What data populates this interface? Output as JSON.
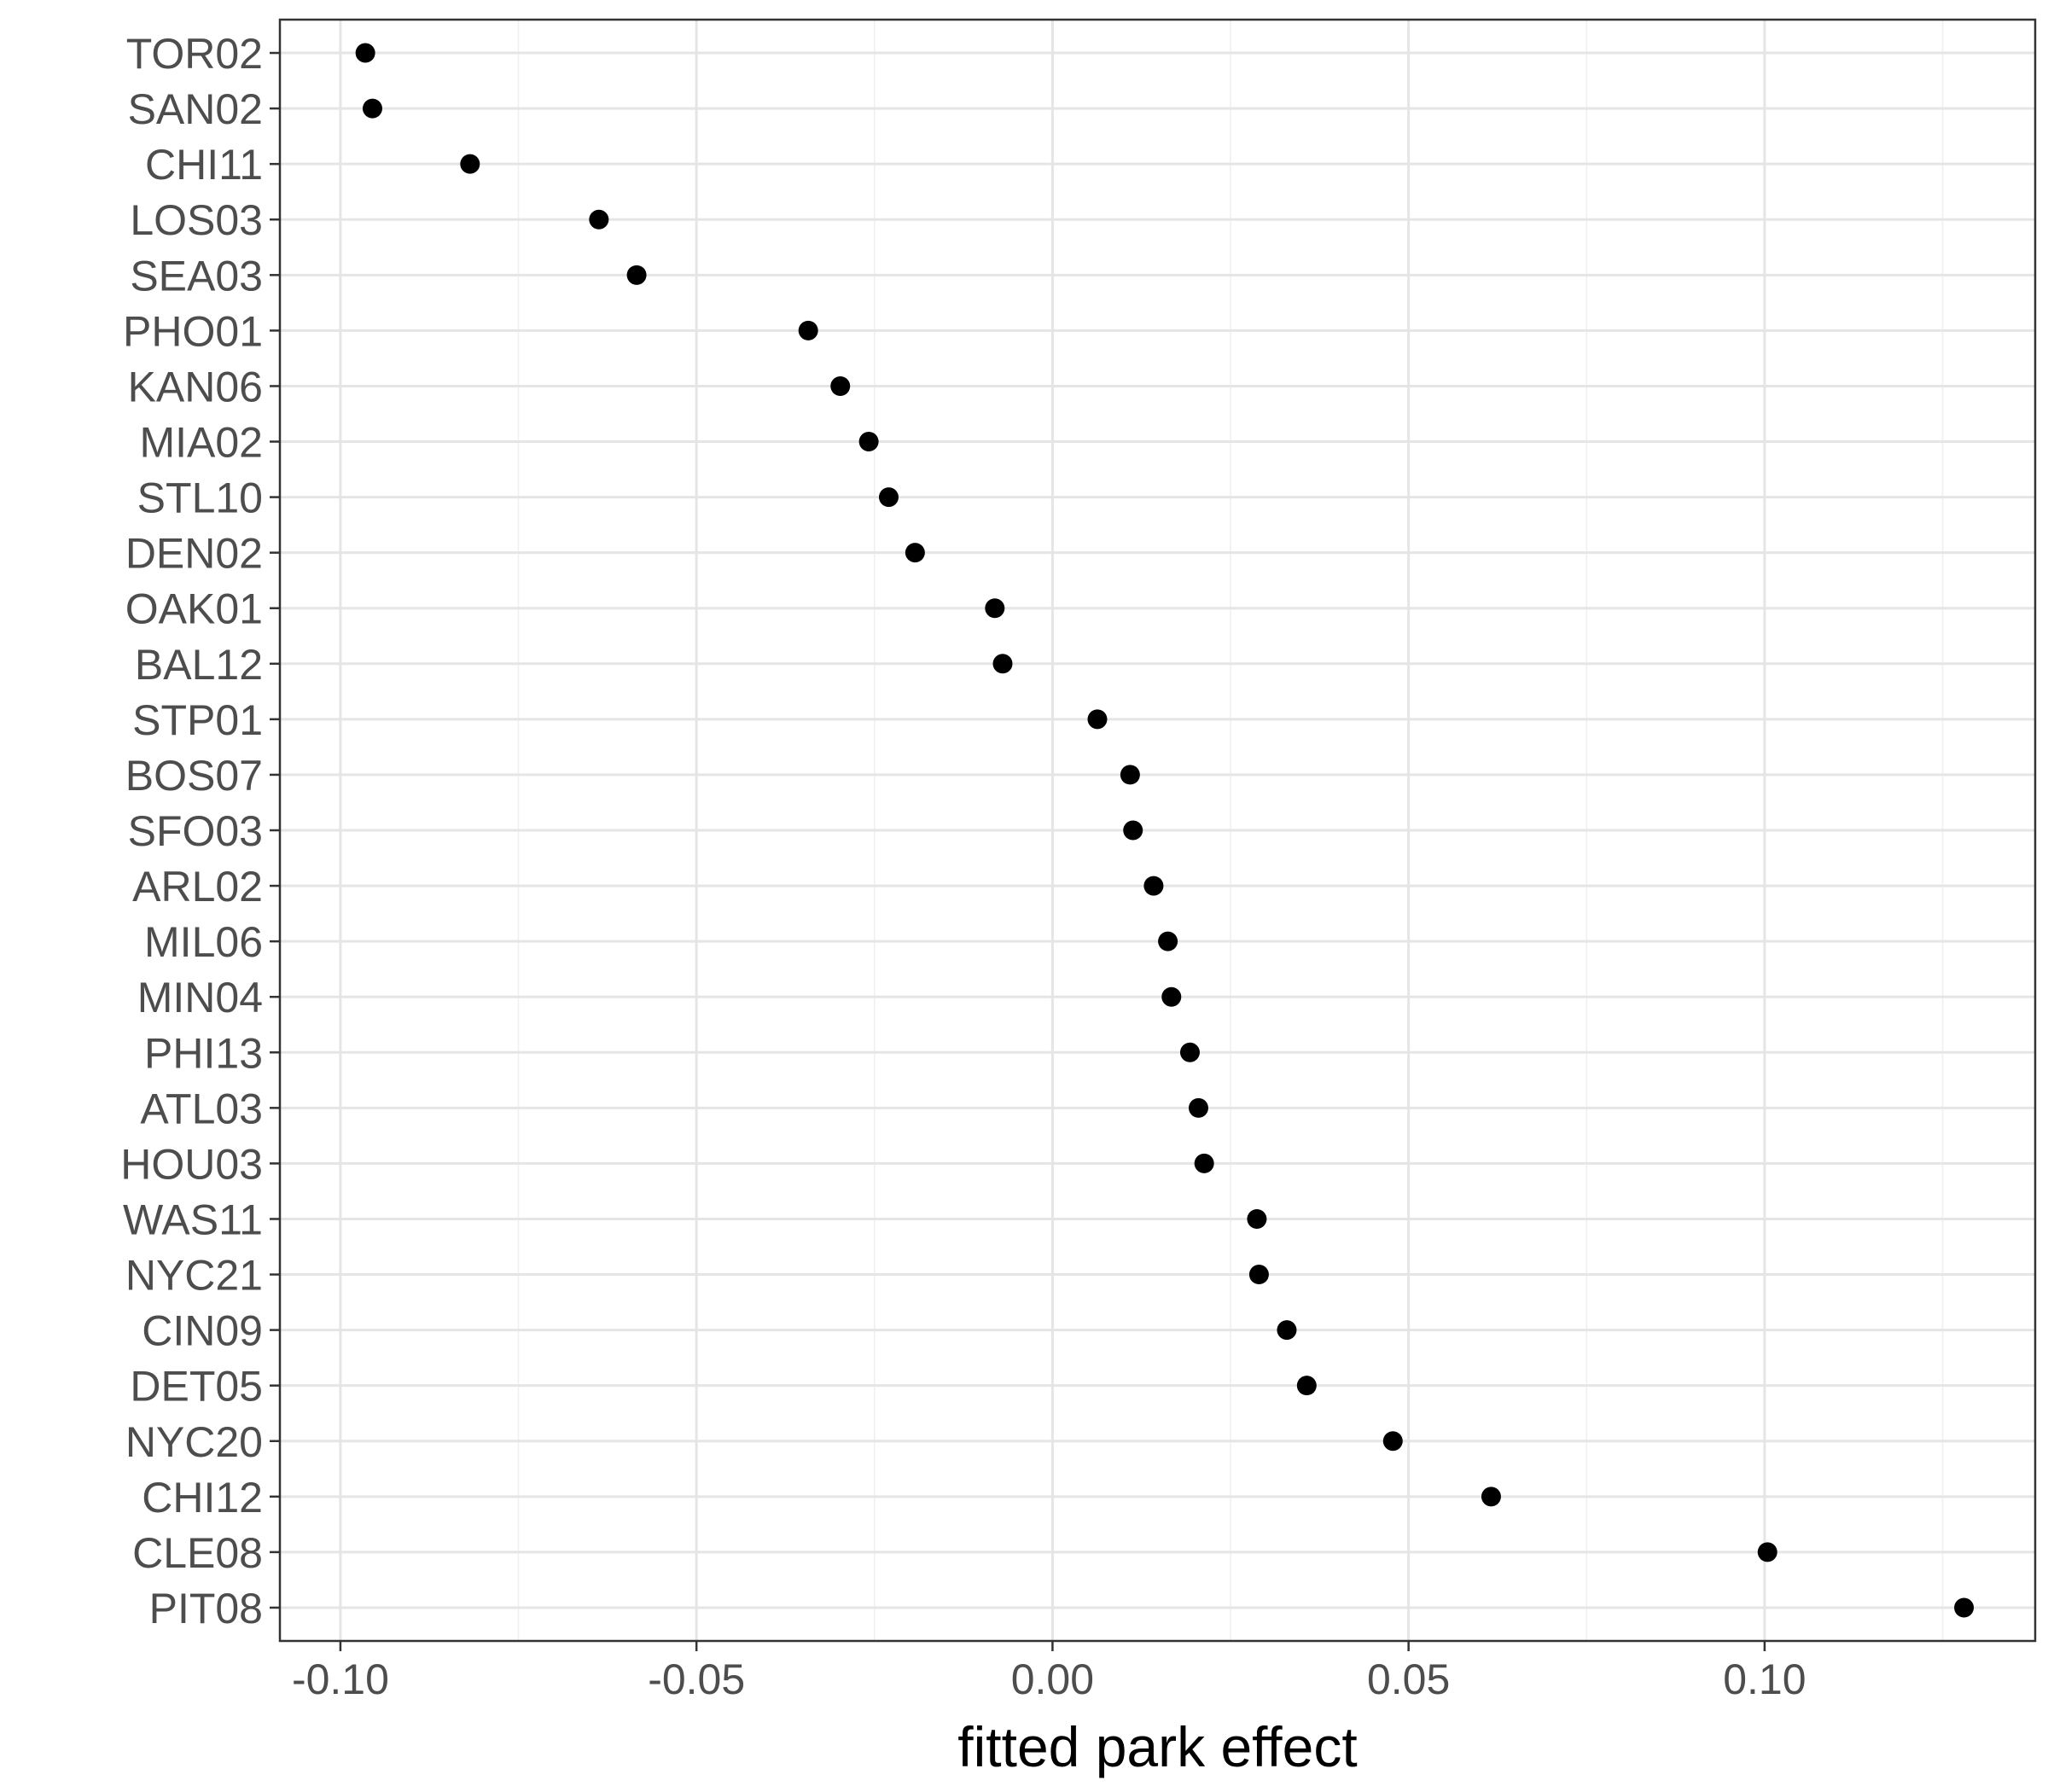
{
  "chart_data": {
    "type": "scatter",
    "xlabel": "fitted park effect",
    "ylabel": "",
    "xlim": [
      -0.1085,
      0.138
    ],
    "xticks": [
      -0.1,
      -0.05,
      0.0,
      0.05,
      0.1
    ],
    "xtick_labels": [
      "-0.10",
      "-0.05",
      "0.00",
      "0.05",
      "0.10"
    ],
    "grid": true,
    "legend": "none",
    "point_color": "#000000",
    "points": [
      {
        "label": "TOR02",
        "x": -0.0965
      },
      {
        "label": "SAN02",
        "x": -0.0955
      },
      {
        "label": "CHI11",
        "x": -0.0818
      },
      {
        "label": "LOS03",
        "x": -0.0637
      },
      {
        "label": "SEA03",
        "x": -0.0584
      },
      {
        "label": "PHO01",
        "x": -0.0343
      },
      {
        "label": "KAN06",
        "x": -0.0298
      },
      {
        "label": "MIA02",
        "x": -0.0258
      },
      {
        "label": "STL10",
        "x": -0.023
      },
      {
        "label": "DEN02",
        "x": -0.0193
      },
      {
        "label": "OAK01",
        "x": -0.0081
      },
      {
        "label": "BAL12",
        "x": -0.007
      },
      {
        "label": "STP01",
        "x": 0.0063
      },
      {
        "label": "BOS07",
        "x": 0.0109
      },
      {
        "label": "SFO03",
        "x": 0.0113
      },
      {
        "label": "ARL02",
        "x": 0.0142
      },
      {
        "label": "MIL06",
        "x": 0.0162
      },
      {
        "label": "MIN04",
        "x": 0.0167
      },
      {
        "label": "PHI13",
        "x": 0.0193
      },
      {
        "label": "ATL03",
        "x": 0.0205
      },
      {
        "label": "HOU03",
        "x": 0.0213
      },
      {
        "label": "WAS11",
        "x": 0.0287
      },
      {
        "label": "NYC21",
        "x": 0.029
      },
      {
        "label": "CIN09",
        "x": 0.0329
      },
      {
        "label": "DET05",
        "x": 0.0357
      },
      {
        "label": "NYC20",
        "x": 0.0478
      },
      {
        "label": "CHI12",
        "x": 0.0616
      },
      {
        "label": "CLE08",
        "x": 0.1004
      },
      {
        "label": "PIT08",
        "x": 0.128
      }
    ]
  }
}
